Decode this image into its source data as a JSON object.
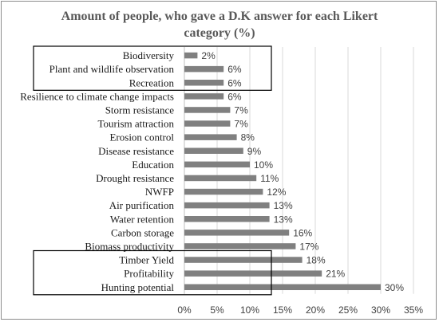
{
  "chart_data": {
    "type": "bar",
    "orientation": "horizontal",
    "title_lines": [
      "Amount of people, who gave a D.K answer for each Likert",
      "category (%)"
    ],
    "categories": [
      "Biodiversity",
      "Plant and wildlife observation",
      "Recreation",
      "Resilience to climate change impacts",
      "Storm resistance",
      "Tourism attraction",
      "Erosion control",
      "Disease resistance",
      "Education",
      "Drought resistance",
      "NWFP",
      "Air purification",
      "Water retention",
      "Carbon storage",
      "Biomass productivity",
      "Timber Yield",
      "Profitability",
      "Hunting potential"
    ],
    "values": [
      2,
      6,
      6,
      6,
      7,
      7,
      8,
      9,
      10,
      11,
      12,
      13,
      13,
      16,
      17,
      18,
      21,
      30
    ],
    "data_labels": [
      "2%",
      "6%",
      "6%",
      "6%",
      "7%",
      "7%",
      "8%",
      "9%",
      "10%",
      "11%",
      "12%",
      "13%",
      "13%",
      "16%",
      "17%",
      "18%",
      "21%",
      "30%"
    ],
    "xlim": [
      0,
      35
    ],
    "x_ticks": [
      0,
      5,
      10,
      15,
      20,
      25,
      30,
      35
    ],
    "x_tick_labels": [
      "0%",
      "5%",
      "10%",
      "15%",
      "20%",
      "25%",
      "30%",
      "35%"
    ],
    "grid": "vertical",
    "bar_color": "#808080",
    "highlight_groups": [
      [
        "Biodiversity",
        "Plant and wildlife observation",
        "Recreation"
      ],
      [
        "Timber Yield",
        "Profitability",
        "Hunting potential"
      ]
    ]
  }
}
